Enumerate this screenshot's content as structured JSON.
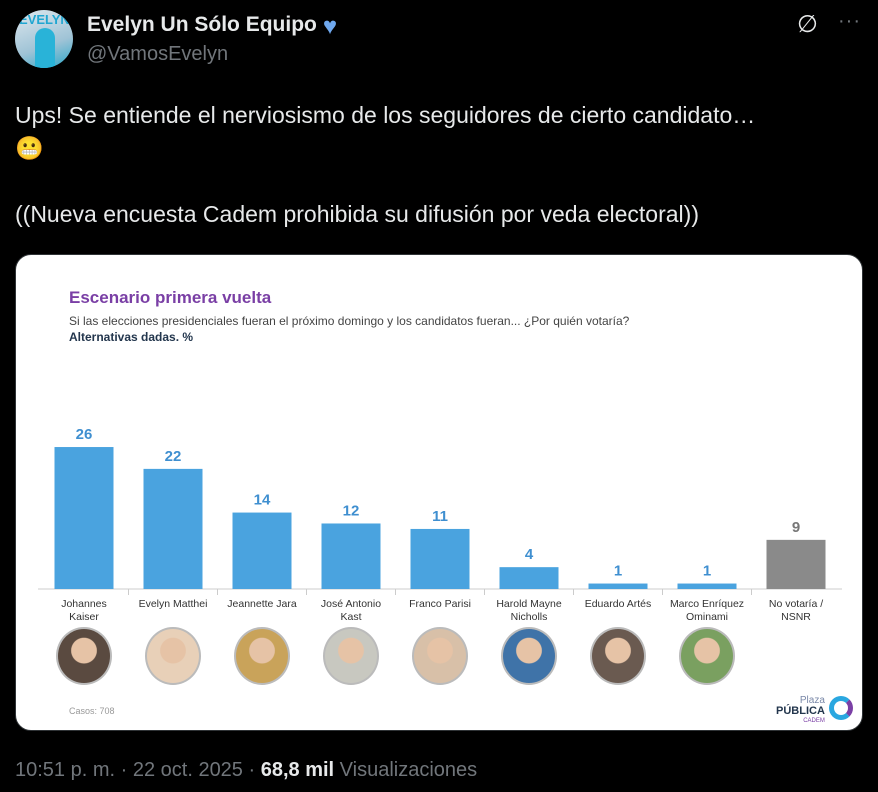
{
  "tweet": {
    "display_name": "Evelyn Un Sólo Equipo",
    "handle": "@VamosEvelyn",
    "avatar_text": "EVELYN",
    "line1": "Ups! Se entiende el nerviosismo de los seguidores de cierto candidato…",
    "emoji": "😬",
    "line2": "((Nueva encuesta Cadem prohibida su difusión por veda electoral))",
    "time": "10:51 p. m.",
    "date": "22 oct. 2025",
    "views": "68,8 mil",
    "views_label": "Visualizaciones"
  },
  "card": {
    "casos": "Casos: 708",
    "logo": {
      "top": "Plaza",
      "mid": "PÚBLICA",
      "bottom": "CADEM"
    }
  },
  "chart_data": {
    "type": "bar",
    "title": "Escenario primera vuelta",
    "subtitle": "Si las elecciones presidenciales fueran el próximo domingo y los candidatos fueran... ¿Por quién votaría?",
    "note": "Alternativas dadas. %",
    "categories": [
      "Johannes Kaiser",
      "Evelyn Matthei",
      "Jeannette Jara",
      "José Antonio Kast",
      "Franco Parisi",
      "Harold Mayne Nicholls",
      "Eduardo Artés",
      "Marco Enríquez Ominami",
      "No votaría / NSNR"
    ],
    "values": [
      26,
      22,
      14,
      12,
      11,
      4,
      1,
      1,
      9
    ],
    "colors": [
      "#4aa3df",
      "#4aa3df",
      "#4aa3df",
      "#4aa3df",
      "#4aa3df",
      "#4aa3df",
      "#4aa3df",
      "#4aa3df",
      "#8a8a8a"
    ],
    "photo_colors": [
      "#5a4a40",
      "#e8d0b8",
      "#c9a35a",
      "#c8c8c0",
      "#d8c0a8",
      "#3f73a8",
      "#6a5a50",
      "#7aa060"
    ],
    "ylim": [
      0,
      28
    ]
  }
}
